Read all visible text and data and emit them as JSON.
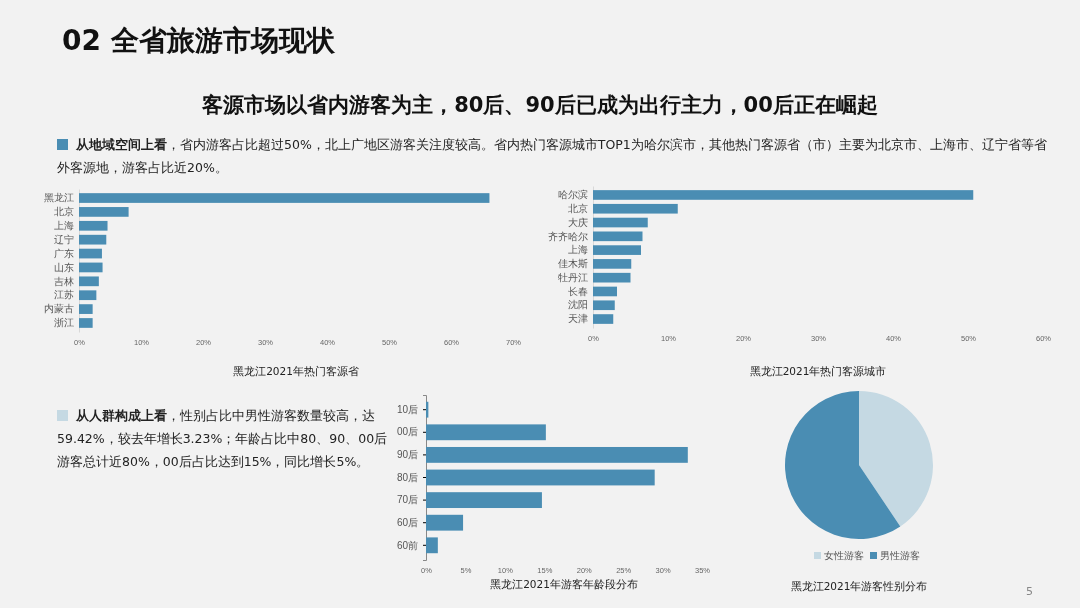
{
  "chart_data": [
    {
      "type": "other",
      "title": "02 全省旅游市场现状",
      "subtitle": "客源市场以省内游客为主，80后、90后已成为出行主力，00后正在崛起",
      "annotations": [
        "从地域空间上看",
        "，省内游客占比超过50%，北上广地区游客关注度较高。省内热门客源城市TOP1为哈尔滨市，其他热门客源省（市）主要为北京市、上海市、辽宁省等省外客源地，游客占比近20%。",
        "从人群构成上看",
        "，性别占比中男性游客数量较高，达59.42%，较去年增长3.23%；年龄占比中80、90、00后游客总计近80%，00后占比达到15%，同比增长5%。",
        "5"
      ]
    },
    {
      "type": "bar",
      "orientation": "horizontal",
      "title": "黑龙江2021年热门客源省",
      "categories": [
        "黑龙江",
        "北京",
        "上海",
        "辽宁",
        "广东",
        "山东",
        "吉林",
        "江苏",
        "内蒙古",
        "浙江"
      ],
      "values": [
        66.2,
        8.0,
        4.6,
        4.4,
        3.7,
        3.8,
        3.2,
        2.8,
        2.2,
        2.2
      ],
      "color": "#4a8db3",
      "xlim": [
        0,
        70
      ],
      "xticks": [
        {
          "value": 0,
          "label": "0%"
        },
        {
          "value": 10,
          "label": "10%"
        },
        {
          "value": 20,
          "label": "20%"
        },
        {
          "value": 30,
          "label": "30%"
        },
        {
          "value": 40,
          "label": "40%"
        },
        {
          "value": 50,
          "label": "50%"
        },
        {
          "value": 60,
          "label": "60%"
        },
        {
          "value": 70,
          "label": "70%"
        }
      ],
      "grid": false
    },
    {
      "type": "bar",
      "orientation": "horizontal",
      "title": "黑龙江2021年热门客源城市",
      "categories": [
        "哈尔滨",
        "北京",
        "大庆",
        "齐齐哈尔",
        "上海",
        "佳木斯",
        "牡丹江",
        "长春",
        "沈阳",
        "天津"
      ],
      "values": [
        50.7,
        11.3,
        7.3,
        6.6,
        6.4,
        5.1,
        5.0,
        3.2,
        2.9,
        2.7
      ],
      "color": "#4a8db3",
      "xlim": [
        0,
        60
      ],
      "xticks": [
        {
          "value": 0,
          "label": "0%"
        },
        {
          "value": 10,
          "label": "10%"
        },
        {
          "value": 20,
          "label": "20%"
        },
        {
          "value": 30,
          "label": "30%"
        },
        {
          "value": 40,
          "label": "40%"
        },
        {
          "value": 50,
          "label": "50%"
        },
        {
          "value": 60,
          "label": "60%"
        }
      ],
      "grid": false
    },
    {
      "type": "bar",
      "orientation": "horizontal",
      "title": "黑龙江2021年游客年龄段分布",
      "categories": [
        "10后",
        "00后",
        "90后",
        "80后",
        "70后",
        "60后",
        "60前"
      ],
      "values": [
        0.3,
        15.2,
        33.2,
        29.0,
        14.7,
        4.7,
        1.5
      ],
      "color": "#4a8db3",
      "xlim": [
        0,
        35
      ],
      "xticks": [
        {
          "value": 0,
          "label": "0%"
        },
        {
          "value": 5,
          "label": "5%"
        },
        {
          "value": 10,
          "label": "10%"
        },
        {
          "value": 15,
          "label": "15%"
        },
        {
          "value": 20,
          "label": "20%"
        },
        {
          "value": 25,
          "label": "25%"
        },
        {
          "value": 30,
          "label": "30%"
        },
        {
          "value": 35,
          "label": "35%"
        }
      ],
      "grid": false
    },
    {
      "type": "pie",
      "title": "黑龙江2021年游客性别分布",
      "categories": [
        "女性游客",
        "男性游客"
      ],
      "values": [
        40.58,
        59.42
      ],
      "colors": [
        "#c5d9e3",
        "#4a8db3"
      ],
      "legend": "bottom"
    }
  ]
}
